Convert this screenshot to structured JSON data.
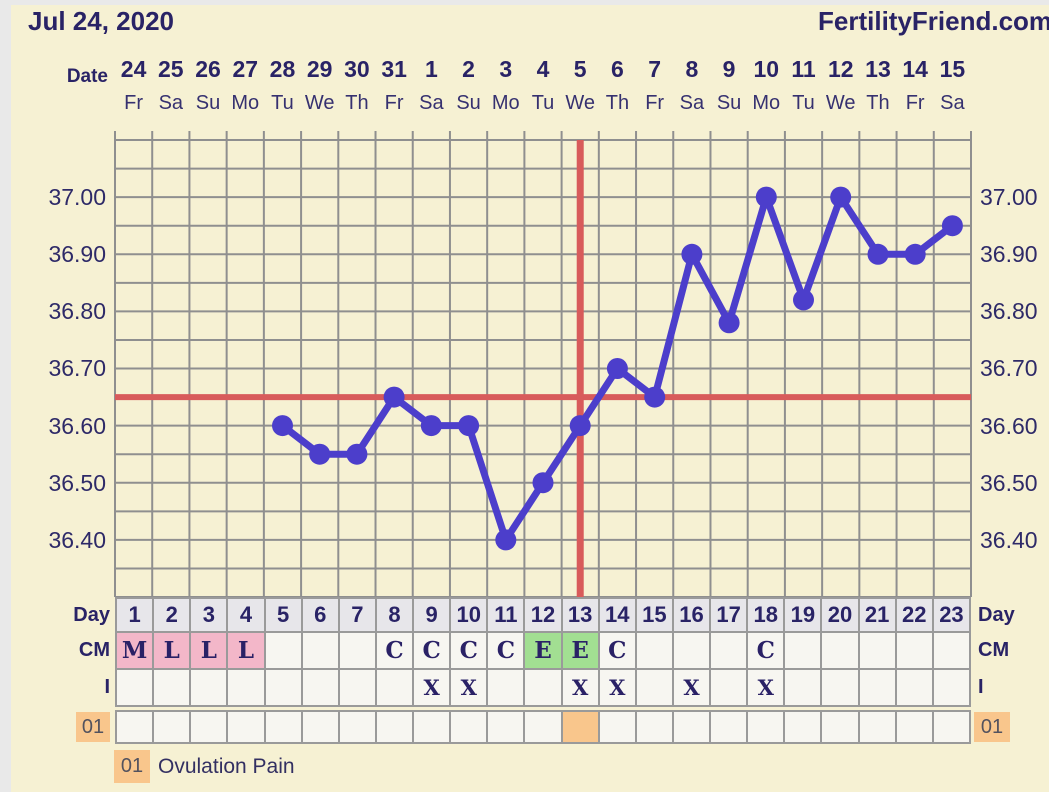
{
  "header": {
    "title": "Jul 24, 2020",
    "brand": "FertilityFriend.com",
    "date_label": "Date"
  },
  "calendar": {
    "dates": [
      "24",
      "25",
      "26",
      "27",
      "28",
      "29",
      "30",
      "31",
      "1",
      "2",
      "3",
      "4",
      "5",
      "6",
      "7",
      "8",
      "9",
      "10",
      "11",
      "12",
      "13",
      "14",
      "15"
    ],
    "weekdays": [
      "Fr",
      "Sa",
      "Su",
      "Mo",
      "Tu",
      "We",
      "Th",
      "Fr",
      "Sa",
      "Su",
      "Mo",
      "Tu",
      "We",
      "Th",
      "Fr",
      "Sa",
      "Su",
      "Mo",
      "Tu",
      "We",
      "Th",
      "Fr",
      "Sa"
    ]
  },
  "chart_data": {
    "type": "line",
    "title": "Basal body temperature by cycle day",
    "days_total": 23,
    "points": [
      {
        "day": 5,
        "temp": 36.6
      },
      {
        "day": 6,
        "temp": 36.55
      },
      {
        "day": 7,
        "temp": 36.55
      },
      {
        "day": 8,
        "temp": 36.65
      },
      {
        "day": 9,
        "temp": 36.6
      },
      {
        "day": 10,
        "temp": 36.6
      },
      {
        "day": 11,
        "temp": 36.4
      },
      {
        "day": 12,
        "temp": 36.5
      },
      {
        "day": 13,
        "temp": 36.6
      },
      {
        "day": 14,
        "temp": 36.7
      },
      {
        "day": 15,
        "temp": 36.65
      },
      {
        "day": 16,
        "temp": 36.9
      },
      {
        "day": 17,
        "temp": 36.78
      },
      {
        "day": 18,
        "temp": 37.0
      },
      {
        "day": 19,
        "temp": 36.82
      },
      {
        "day": 20,
        "temp": 37.0
      },
      {
        "day": 21,
        "temp": 36.9
      },
      {
        "day": 22,
        "temp": 36.9
      },
      {
        "day": 23,
        "temp": 36.95
      }
    ],
    "ylim": [
      36.3,
      37.1
    ],
    "ytick_step": 0.05,
    "yaxis_labels": [
      "37.00",
      "36.90",
      "36.80",
      "36.70",
      "36.60",
      "36.50",
      "36.40"
    ],
    "coverline_temp": 36.65,
    "ovulation_line_day": 13,
    "grid": true,
    "legend_position": "none"
  },
  "table": {
    "left_labels": {
      "day": "Day",
      "cm": "CM",
      "intercourse": "I",
      "symptom": "01"
    },
    "right_labels": {
      "day": "Day",
      "cm": "CM",
      "intercourse": "I",
      "symptom": "01"
    },
    "days": [
      "1",
      "2",
      "3",
      "4",
      "5",
      "6",
      "7",
      "8",
      "9",
      "10",
      "11",
      "12",
      "13",
      "14",
      "15",
      "16",
      "17",
      "18",
      "19",
      "20",
      "21",
      "22",
      "23"
    ],
    "cm_values": [
      "M",
      "L",
      "L",
      "L",
      "",
      "",
      "",
      "C",
      "C",
      "C",
      "C",
      "E",
      "E",
      "C",
      "",
      "",
      "",
      "C",
      "",
      "",
      "",
      "",
      ""
    ],
    "intercourse_days": [
      9,
      10,
      13,
      14,
      16,
      18
    ],
    "symptom_marked_days": [
      13
    ]
  },
  "legend": {
    "code": "01",
    "label": "Ovulation Pain"
  },
  "colors": {
    "background": "#f6f1d3",
    "frame_edge": "#e9e9e9",
    "text_navy": "#292366",
    "grid_line": "#8f8f8f",
    "temp_line": "#4c3ecb",
    "crosshair_red": "#d85b5b",
    "menses_pink": "#f3b7c9",
    "eggwhite_green": "#a2df92",
    "symptom_orange": "#f9c68c",
    "day_header_bg": "#e7e6ea",
    "cell_bg": "#f7f6f1"
  }
}
